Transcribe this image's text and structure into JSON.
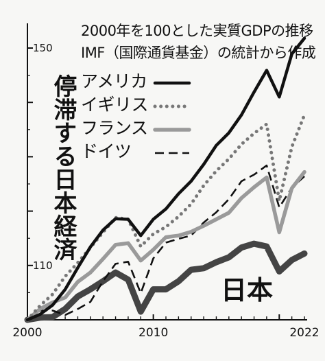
{
  "chart_data": {
    "type": "line",
    "title": "停滞する日本経済",
    "subtitle": "2000年を100とした実質GDPの推移",
    "source": "IMF（国際通貨基金）の統計から作成",
    "x": [
      2000,
      2001,
      2002,
      2003,
      2004,
      2005,
      2006,
      2007,
      2008,
      2009,
      2010,
      2011,
      2012,
      2013,
      2014,
      2015,
      2016,
      2017,
      2018,
      2019,
      2020,
      2021,
      2022
    ],
    "x_tick_labels": [
      "2000",
      "2010",
      "2022"
    ],
    "y_tick_labels": [
      "150",
      "110"
    ],
    "ylim": [
      100,
      153
    ],
    "grid": false,
    "legend_position": "top-left",
    "series": [
      {
        "name": "アメリカ",
        "color": "#111111",
        "style": "solid",
        "values": [
          100,
          101,
          102.7,
          105.6,
          109.6,
          113.4,
          116.5,
          118.6,
          118.5,
          115.5,
          118.5,
          120.4,
          123.2,
          125.5,
          128.6,
          132.1,
          134.4,
          137.7,
          141.9,
          145.9,
          141,
          148.9,
          151.8
        ]
      },
      {
        "name": "イギリス",
        "color": "#777777",
        "style": "dotted",
        "values": [
          100,
          102.6,
          104.7,
          108,
          110.5,
          113.3,
          116.1,
          118.8,
          118.5,
          113.5,
          115.8,
          117.1,
          119,
          121.3,
          124.7,
          127.4,
          129.6,
          132.3,
          134.3,
          136,
          121.9,
          131.8,
          137.7
        ]
      },
      {
        "name": "フランス",
        "color": "#9a9a9a",
        "style": "solid",
        "values": [
          100,
          102,
          103.2,
          104.1,
          107,
          108.7,
          111.2,
          113.8,
          114.1,
          110.9,
          112.9,
          115.2,
          115.5,
          116.2,
          117.3,
          118.5,
          119.7,
          122.4,
          124.4,
          126.2,
          116.1,
          124.2,
          127.2
        ]
      },
      {
        "name": "ドイツ",
        "color": "#111111",
        "style": "dashed",
        "values": [
          100,
          101.7,
          101.7,
          100.9,
          102,
          103.3,
          107.1,
          110.3,
          110.7,
          104.9,
          111.3,
          114.2,
          114.9,
          115.5,
          117.9,
          119.8,
          122.2,
          125.5,
          126.7,
          128.4,
          120.7,
          124.3,
          126.4
        ]
      },
      {
        "name": "日本",
        "color": "#444444",
        "style": "solid",
        "values": [
          100,
          100.4,
          100.5,
          102,
          104.3,
          105.6,
          107.1,
          108.7,
          107.4,
          101.5,
          105.6,
          105.6,
          107.1,
          109.2,
          109.5,
          110.6,
          111.5,
          113.3,
          114,
          113.5,
          108.9,
          111,
          112.2
        ]
      }
    ]
  }
}
